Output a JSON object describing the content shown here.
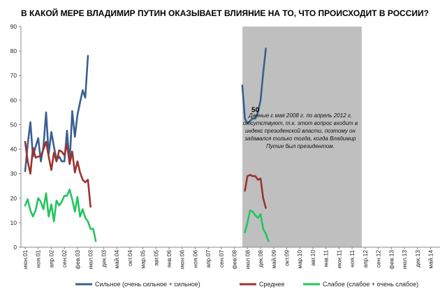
{
  "chart_data": {
    "type": "line",
    "title": "В КАКОЙ МЕРЕ ВЛАДИМИР ПУТИН ОКАЗЫВАЕТ ВЛИЯНИЕ НА ТО, ЧТО ПРОИСХОДИТ В РОССИИ?",
    "xlabel": "",
    "ylabel": "",
    "ylim": [
      0,
      90
    ],
    "yticks": [
      0,
      10,
      20,
      30,
      40,
      50,
      60,
      70,
      80,
      90
    ],
    "grid": false,
    "legend": "bottom",
    "x_labels": [
      "июн.01",
      "ноя.01",
      "апр.02",
      "сен.02",
      "фев.03",
      "июл.03",
      "дек.03",
      "май.04",
      "окт.04",
      "мар.05",
      "авг.05",
      "янв.06",
      "июн.06",
      "ноя.06",
      "апр.07",
      "сен.07",
      "фев.08",
      "июл.08",
      "дек.08",
      "май.09",
      "окт.09",
      "мар.10",
      "авг.10",
      "янв.11",
      "июн.11",
      "ноя.11",
      "апр.12",
      "сен.12",
      "фев.13",
      "июл.13",
      "дек.13",
      "май.14"
    ],
    "gap": {
      "from": "май.08",
      "to": "апр.12",
      "color": "#bfbfbf"
    },
    "annotation": "Данные с мая 2008 г. по апрель 2012 г. отсутствуют, т.к. этот вопрос входит в индекс президенской власти, поэтому он задавался только тогда, когда Владимир Путин был президентом.",
    "data_labels": [
      {
        "series": 0,
        "index": 36,
        "text": "78"
      },
      {
        "series": 0,
        "index": 88,
        "text": "50"
      },
      {
        "series": 0,
        "index": 97,
        "text": "81"
      }
    ],
    "series": [
      {
        "name": "Сильное (очень сильное + сильное)",
        "color": "#3b5f8f",
        "segments": [
          {
            "start": 0,
            "values": [
              31,
              42,
              51,
              37,
              41,
              44.5,
              35,
              41,
              55,
              38,
              47,
              41,
              35.5,
              37,
              35,
              35,
              47.5,
              34,
              55.5,
              45,
              54,
              59,
              64,
              61,
              78
            ]
          },
          {
            "start": 83,
            "values": [
              66,
              52.5,
              50.5,
              51.5,
              52.5,
              52.5,
              55,
              60,
              71,
              81
            ]
          }
        ]
      },
      {
        "name": "Среднее",
        "color": "#9b3232",
        "segments": [
          {
            "start": 0,
            "values": [
              43,
              35,
              30,
              40.5,
              36.5,
              37,
              37,
              40,
              43,
              37,
              31.5,
              38.5,
              35,
              39.5,
              39,
              37.5,
              42,
              34,
              39,
              30.5,
              35,
              30.5,
              27.5,
              26.5,
              27.5,
              16.5
            ]
          },
          {
            "start": 84,
            "values": [
              23,
              29,
              29.5,
              29,
              29,
              27.5,
              28,
              20,
              16
            ]
          }
        ]
      },
      {
        "name": "Слабое (слабое + очень слабое)",
        "color": "#22c55e",
        "segments": [
          {
            "start": 0,
            "values": [
              17,
              19.5,
              15,
              12.5,
              15,
              20,
              18.5,
              15.5,
              22,
              12.5,
              17.5,
              10.5,
              19,
              17,
              18.5,
              21,
              21,
              23.5,
              19.5,
              14.5,
              20.5,
              12.5,
              15.5,
              12,
              10.5,
              7.5,
              7.5,
              2.5
            ]
          },
          {
            "start": 84,
            "values": [
              6,
              10,
              15,
              14.5,
              13,
              12,
              13.5,
              7.5,
              5.5,
              2.5
            ]
          }
        ]
      }
    ]
  }
}
